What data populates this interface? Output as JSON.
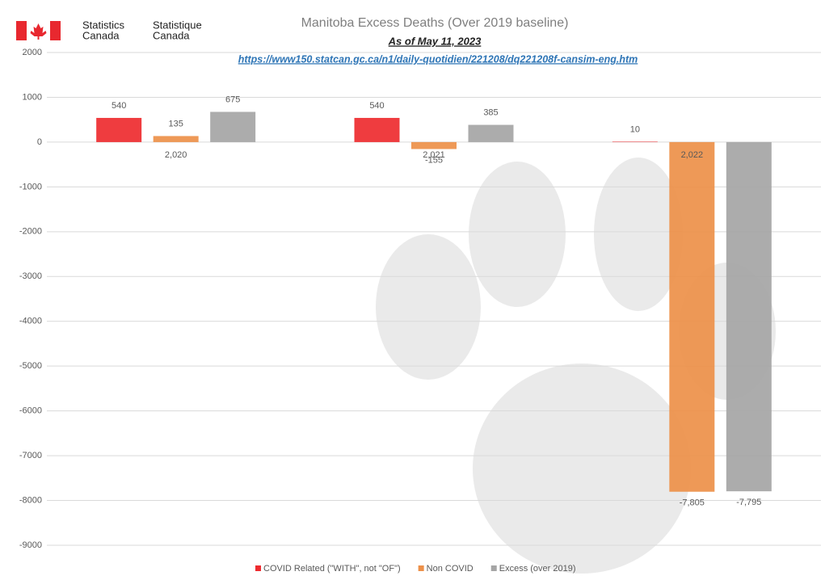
{
  "header": {
    "agency_en": [
      "Statistics",
      "Canada"
    ],
    "agency_fr": [
      "Statistique",
      "Canada"
    ]
  },
  "chart_data": {
    "type": "bar",
    "title": "Manitoba Excess Deaths (Over 2019 baseline)",
    "subtitle": "As of May 11, 2023",
    "source": "https://www150.statcan.gc.ca/n1/daily-quotidien/221208/dq221208f-cansim-eng.htm",
    "categories": [
      "2,020",
      "2,021",
      "2,022"
    ],
    "series": [
      {
        "name": "COVID Related (\"WITH\", not \"OF\")",
        "color": "#ee2b2f",
        "values": [
          540,
          540,
          10
        ]
      },
      {
        "name": "Non COVID",
        "color": "#ed9049",
        "values": [
          135,
          -155,
          -7805
        ],
        "value_labels": [
          "135",
          "-155",
          "-7,805"
        ]
      },
      {
        "name": "Excess (over 2019)",
        "color": "#a5a5a5",
        "values": [
          675,
          385,
          -7795
        ],
        "value_labels": [
          "675",
          "385",
          "-7,795"
        ]
      }
    ],
    "ylim": [
      -9000,
      2000
    ],
    "yticks": [
      2000,
      1000,
      0,
      -1000,
      -2000,
      -3000,
      -4000,
      -5000,
      -6000,
      -7000,
      -8000,
      -9000
    ],
    "grid": true,
    "legend": "bottom"
  }
}
